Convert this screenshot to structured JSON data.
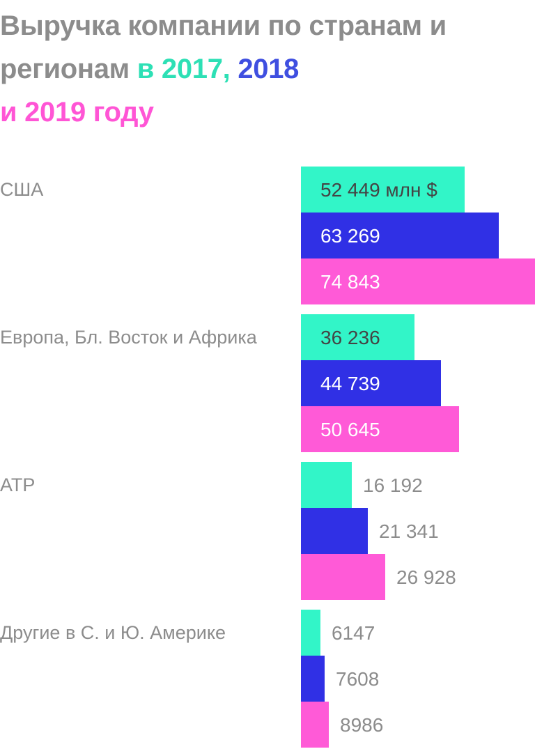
{
  "title": {
    "part1": "Выручка компании по странам и регионам",
    "year1": "в 2017,",
    "year2": "2018",
    "year3": "и 2019 году"
  },
  "colors": {
    "title": "#8c8c8c",
    "2017": "#32f5c8",
    "2017_title": "#2de0b5",
    "2018": "#3030e5",
    "2018_title": "#3f4fe0",
    "2019": "#ff5ad7",
    "2019_title": "#ff55d5",
    "label_gray": "#8c8c8c",
    "label_dark": "#444444",
    "label_white": "#ffffff"
  },
  "chart_data": {
    "type": "bar",
    "orientation": "horizontal",
    "unit": "млн $",
    "categories": [
      "США",
      "Европа, Бл. Восток и Африка",
      "АТР",
      "Другие в С. и Ю. Америке"
    ],
    "series": [
      {
        "name": "2017",
        "values": [
          52449,
          36236,
          16192,
          6147
        ],
        "labels": [
          "52 449 млн $",
          "36 236",
          "16 192",
          "6147"
        ]
      },
      {
        "name": "2018",
        "values": [
          63269,
          44739,
          21341,
          7608
        ],
        "labels": [
          "63 269",
          "44 739",
          "21 341",
          "7608"
        ]
      },
      {
        "name": "2019",
        "values": [
          74843,
          50645,
          26928,
          8986
        ],
        "labels": [
          "74 843",
          "50 645",
          "26 928",
          "8986"
        ]
      }
    ],
    "xlim": [
      0,
      74843
    ],
    "grid": false,
    "legend": "in title"
  }
}
